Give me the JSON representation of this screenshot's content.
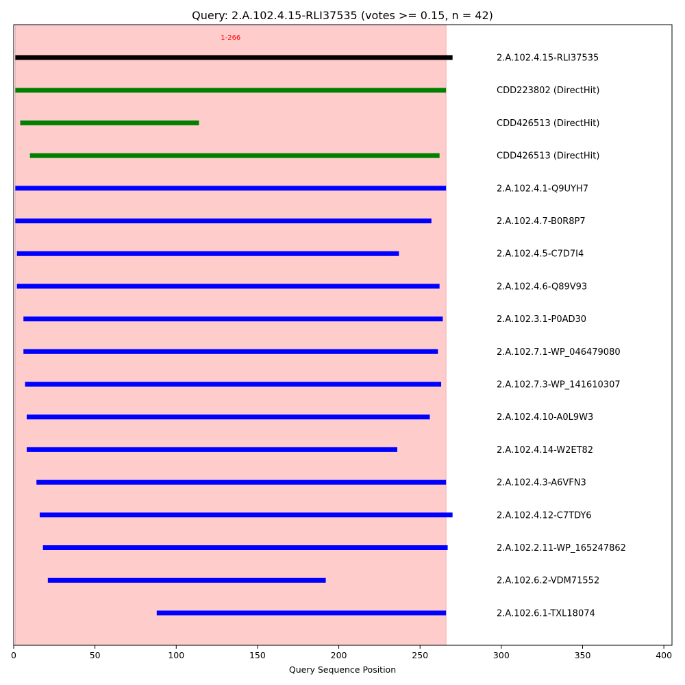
{
  "chart_data": {
    "type": "bar",
    "orientation": "horizontal-ranges",
    "title": "Query: 2.A.102.4.15-RLI37535 (votes >= 0.15, n = 42)",
    "xlabel": "Query Sequence Position",
    "ylabel": "",
    "xlim": [
      0,
      405
    ],
    "xticks": [
      0,
      50,
      100,
      150,
      200,
      250,
      300,
      350,
      400
    ],
    "grid": false,
    "legend": "none",
    "highlight_region": {
      "start": 1,
      "end": 266,
      "label": "1-266",
      "color": "#ffcccc"
    },
    "colors": {
      "query": "#000000",
      "direct_hit": "#008000",
      "hit": "#0000ff",
      "region_label": "#ff0000"
    },
    "rows": [
      {
        "label": "2.A.102.4.15-RLI37535",
        "start": 1,
        "end": 270,
        "kind": "query"
      },
      {
        "label": "CDD223802 (DirectHit)",
        "start": 1,
        "end": 266,
        "kind": "direct_hit"
      },
      {
        "label": "CDD426513 (DirectHit)",
        "start": 4,
        "end": 114,
        "kind": "direct_hit"
      },
      {
        "label": "CDD426513 (DirectHit)",
        "start": 10,
        "end": 262,
        "kind": "direct_hit"
      },
      {
        "label": "2.A.102.4.1-Q9UYH7",
        "start": 1,
        "end": 266,
        "kind": "hit"
      },
      {
        "label": "2.A.102.4.7-B0R8P7",
        "start": 1,
        "end": 257,
        "kind": "hit"
      },
      {
        "label": "2.A.102.4.5-C7D7I4",
        "start": 2,
        "end": 237,
        "kind": "hit"
      },
      {
        "label": "2.A.102.4.6-Q89V93",
        "start": 2,
        "end": 262,
        "kind": "hit"
      },
      {
        "label": "2.A.102.3.1-P0AD30",
        "start": 6,
        "end": 264,
        "kind": "hit"
      },
      {
        "label": "2.A.102.7.1-WP_046479080",
        "start": 6,
        "end": 261,
        "kind": "hit"
      },
      {
        "label": "2.A.102.7.3-WP_141610307",
        "start": 7,
        "end": 263,
        "kind": "hit"
      },
      {
        "label": "2.A.102.4.10-A0L9W3",
        "start": 8,
        "end": 256,
        "kind": "hit"
      },
      {
        "label": "2.A.102.4.14-W2ET82",
        "start": 8,
        "end": 236,
        "kind": "hit"
      },
      {
        "label": "2.A.102.4.3-A6VFN3",
        "start": 14,
        "end": 266,
        "kind": "hit"
      },
      {
        "label": "2.A.102.4.12-C7TDY6",
        "start": 16,
        "end": 270,
        "kind": "hit"
      },
      {
        "label": "2.A.102.2.11-WP_165247862",
        "start": 18,
        "end": 267,
        "kind": "hit"
      },
      {
        "label": "2.A.102.6.2-VDM71552",
        "start": 21,
        "end": 192,
        "kind": "hit"
      },
      {
        "label": "2.A.102.6.1-TXL18074",
        "start": 88,
        "end": 266,
        "kind": "hit"
      }
    ]
  }
}
